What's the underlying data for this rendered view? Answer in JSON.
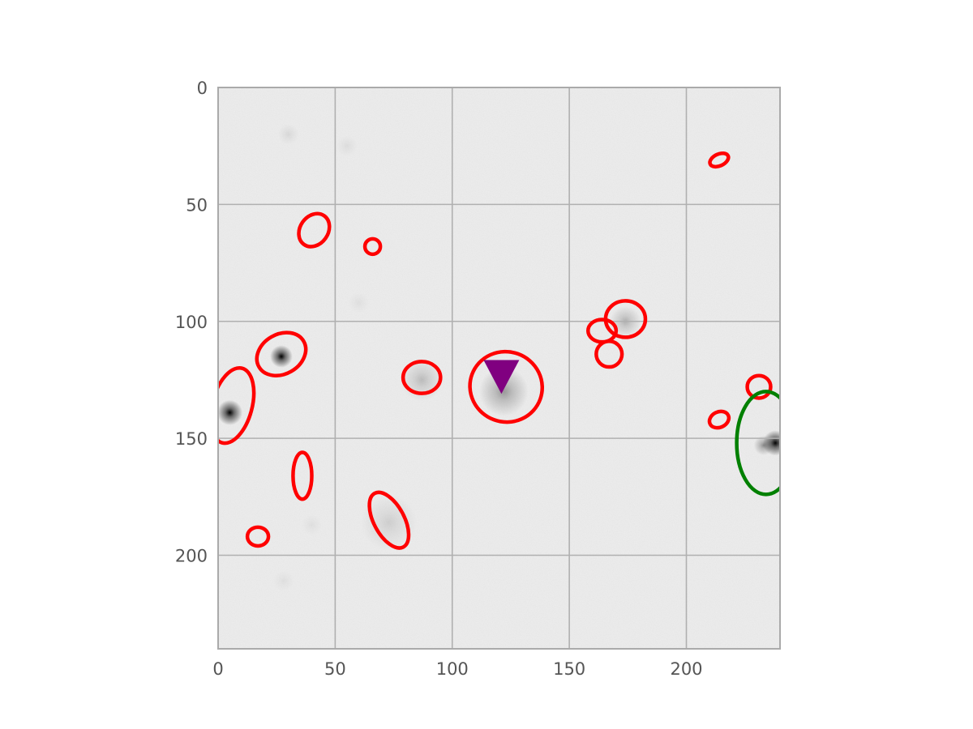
{
  "chart_data": {
    "type": "image",
    "title": "",
    "xlabel": "",
    "ylabel": "",
    "xlim": [
      0,
      240
    ],
    "ylim": [
      240,
      0
    ],
    "grid": true,
    "image": {
      "colormap": "gray_r",
      "background": "#eeeeee"
    },
    "x_ticks": [
      0,
      50,
      100,
      150,
      200
    ],
    "y_ticks": [
      0,
      50,
      100,
      150,
      200
    ],
    "x_tick_labels": [
      "0",
      "50",
      "100",
      "150",
      "200"
    ],
    "y_tick_labels": [
      "0",
      "50",
      "100",
      "150",
      "200"
    ],
    "sources": [
      {
        "x": 27,
        "y": 115,
        "peak": 1.0,
        "sigma": 1.6
      },
      {
        "x": 5,
        "y": 139,
        "peak": 1.0,
        "sigma": 1.8
      },
      {
        "x": 238,
        "y": 152,
        "peak": 1.0,
        "sigma": 1.8
      },
      {
        "x": 233,
        "y": 153,
        "peak": 0.4,
        "sigma": 1.4
      },
      {
        "x": 122,
        "y": 130,
        "peak": 0.35,
        "sigma": 3.5
      },
      {
        "x": 87,
        "y": 125,
        "peak": 0.2,
        "sigma": 3.0
      },
      {
        "x": 174,
        "y": 100,
        "peak": 0.25,
        "sigma": 2.2
      },
      {
        "x": 73,
        "y": 186,
        "peak": 0.12,
        "sigma": 4.0
      },
      {
        "x": 30,
        "y": 20,
        "peak": 0.08,
        "sigma": 1.5
      },
      {
        "x": 55,
        "y": 25,
        "peak": 0.06,
        "sigma": 1.5
      },
      {
        "x": 60,
        "y": 92,
        "peak": 0.05,
        "sigma": 1.5
      },
      {
        "x": 40,
        "y": 187,
        "peak": 0.05,
        "sigma": 1.5
      },
      {
        "x": 28,
        "y": 211,
        "peak": 0.05,
        "sigma": 1.5
      }
    ],
    "ellipses": [
      {
        "name": "red-ellipse",
        "cx": 41,
        "cy": 61,
        "rx": 6.0,
        "ry": 7.5,
        "angle": 35,
        "color": "#ff0000"
      },
      {
        "name": "red-ellipse",
        "cx": 66,
        "cy": 68,
        "rx": 3.3,
        "ry": 3.3,
        "angle": 0,
        "color": "#ff0000"
      },
      {
        "name": "red-ellipse",
        "cx": 214,
        "cy": 31,
        "rx": 4.2,
        "ry": 2.5,
        "angle": -25,
        "color": "#ff0000"
      },
      {
        "name": "red-ellipse",
        "cx": 27,
        "cy": 114,
        "rx": 11.0,
        "ry": 8.5,
        "angle": -30,
        "color": "#ff0000"
      },
      {
        "name": "red-ellipse",
        "cx": 6,
        "cy": 136,
        "rx": 8.5,
        "ry": 16.5,
        "angle": 15,
        "color": "#ff0000"
      },
      {
        "name": "red-ellipse",
        "cx": 87,
        "cy": 124,
        "rx": 8.0,
        "ry": 6.8,
        "angle": 0,
        "color": "#ff0000"
      },
      {
        "name": "red-ellipse",
        "cx": 123,
        "cy": 128,
        "rx": 15.5,
        "ry": 15.0,
        "angle": 20,
        "color": "#ff0000"
      },
      {
        "name": "red-ellipse",
        "cx": 164,
        "cy": 104,
        "rx": 6.0,
        "ry": 4.8,
        "angle": 0,
        "color": "#ff0000"
      },
      {
        "name": "red-ellipse",
        "cx": 174,
        "cy": 99,
        "rx": 8.5,
        "ry": 7.8,
        "angle": 0,
        "color": "#ff0000"
      },
      {
        "name": "red-ellipse",
        "cx": 167,
        "cy": 114,
        "rx": 5.5,
        "ry": 5.5,
        "angle": 0,
        "color": "#ff0000"
      },
      {
        "name": "red-ellipse",
        "cx": 231,
        "cy": 128,
        "rx": 5.0,
        "ry": 4.8,
        "angle": 0,
        "color": "#ff0000"
      },
      {
        "name": "red-ellipse",
        "cx": 214,
        "cy": 142,
        "rx": 4.3,
        "ry": 3.3,
        "angle": -25,
        "color": "#ff0000"
      },
      {
        "name": "red-ellipse",
        "cx": 36,
        "cy": 166,
        "rx": 4.0,
        "ry": 10.0,
        "angle": 0,
        "color": "#ff0000"
      },
      {
        "name": "red-ellipse",
        "cx": 73,
        "cy": 185,
        "rx": 6.5,
        "ry": 13.0,
        "angle": -28,
        "color": "#ff0000"
      },
      {
        "name": "red-ellipse",
        "cx": 17,
        "cy": 192,
        "rx": 4.5,
        "ry": 4.0,
        "angle": 0,
        "color": "#ff0000"
      },
      {
        "name": "green-ellipse",
        "cx": 234,
        "cy": 152,
        "rx": 12.5,
        "ry": 22.0,
        "angle": 0,
        "color": "#008000"
      }
    ],
    "markers": [
      {
        "name": "purple-triangle-marker",
        "x": 121,
        "y": 123,
        "shape": "triangle-down",
        "color": "#800080"
      }
    ]
  }
}
